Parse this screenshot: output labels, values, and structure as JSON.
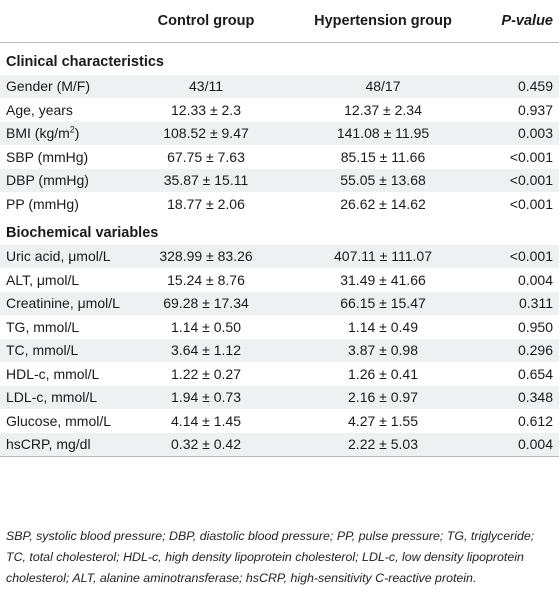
{
  "header": {
    "col0": "",
    "col1": "Control group",
    "col2": "Hypertension group",
    "col3": "P-value"
  },
  "sections": [
    {
      "title": "Clinical characteristics",
      "rows": [
        {
          "label": "Gender (M/F)",
          "control": "43/11",
          "hypertension": "48/17",
          "p": "0.459"
        },
        {
          "label": "Age, years",
          "control": "12.33 ± 2.3",
          "hypertension": "12.37 ± 2.34",
          "p": "0.937"
        },
        {
          "label": "BMI (kg/m",
          "label_sup": "2",
          "label_after": ")",
          "control": "108.52 ± 9.47",
          "hypertension": "141.08 ± 11.95",
          "p": "0.003"
        },
        {
          "label": "SBP (mmHg)",
          "control": "67.75 ± 7.63",
          "hypertension": "85.15 ± 11.66",
          "p": "<0.001"
        },
        {
          "label": "DBP (mmHg)",
          "control": "35.87 ± 15.11",
          "hypertension": "55.05 ± 13.68",
          "p": "<0.001"
        },
        {
          "label": "PP (mmHg)",
          "control": "18.77 ± 2.06",
          "hypertension": "26.62 ± 14.62",
          "p": "<0.001"
        }
      ]
    },
    {
      "title": "Biochemical variables",
      "rows": [
        {
          "label": "Uric acid, μmol/L",
          "control": "328.99 ± 83.26",
          "hypertension": "407.11 ± 111.07",
          "p": "<0.001"
        },
        {
          "label": "ALT, μmol/L",
          "control": "15.24 ± 8.76",
          "hypertension": "31.49 ± 41.66",
          "p": "0.004"
        },
        {
          "label": "Creatinine, μmol/L",
          "control": "69.28 ± 17.34",
          "hypertension": "66.15 ± 15.47",
          "p": "0.311"
        },
        {
          "label": "TG, mmol/L",
          "control": "1.14 ± 0.50",
          "hypertension": "1.14 ± 0.49",
          "p": "0.950"
        },
        {
          "label": "TC, mmol/L",
          "control": "3.64 ± 1.12",
          "hypertension": "3.87 ± 0.98",
          "p": "0.296"
        },
        {
          "label": "HDL-c, mmol/L",
          "control": "1.22 ± 0.27",
          "hypertension": "1.26 ± 0.41",
          "p": "0.654"
        },
        {
          "label": "LDL-c, mmol/L",
          "control": "1.94 ± 0.73",
          "hypertension": "2.16 ± 0.97",
          "p": "0.348"
        },
        {
          "label": "Glucose, mmol/L",
          "control": "4.14 ± 1.45",
          "hypertension": "4.27 ± 1.55",
          "p": "0.612"
        },
        {
          "label": "hsCRP, mg/dl",
          "control": "0.32 ± 0.42",
          "hypertension": "2.22 ± 5.03",
          "p": "0.004"
        }
      ]
    }
  ],
  "footnote": "SBP, systolic blood pressure; DBP, diastolic blood pressure; PP, pulse pressure; TG, triglyceride; TC, total cholesterol; HDL-c, high density lipoprotein cholesterol; LDL-c, low density lipoprotein cholesterol; ALT, alanine aminotransferase; hsCRP, high-sensitivity C-reactive protein.",
  "colors": {
    "zebra": "#eef0f2",
    "rule": "#b9b9b9",
    "text": "#1a1a1a"
  }
}
